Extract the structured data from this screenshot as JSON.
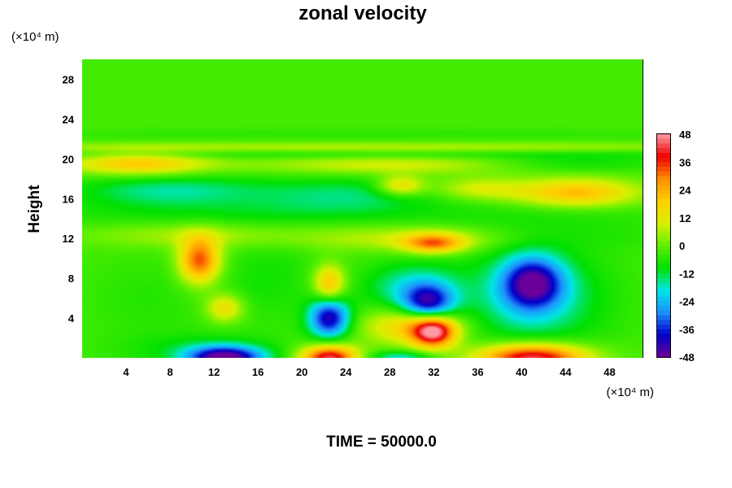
{
  "chart_data": {
    "type": "heatmap",
    "title": "zonal velocity",
    "ylabel": "Height",
    "y_unit": "(×10⁴ m)",
    "x_unit": "(×10⁴ m)",
    "footer": "TIME = 50000.0",
    "xlim": [
      0,
      51
    ],
    "ylim": [
      0,
      30
    ],
    "x_ticks": [
      4,
      8,
      12,
      16,
      20,
      24,
      28,
      32,
      36,
      40,
      44,
      48
    ],
    "y_ticks": [
      4,
      8,
      12,
      16,
      20,
      24,
      28
    ],
    "colorbar": {
      "ticks": [
        48,
        36,
        24,
        12,
        0,
        -12,
        -24,
        -36,
        -48
      ],
      "range": [
        -48,
        48
      ],
      "colors": [
        "#6a0099",
        "#0000c8",
        "#1e90ff",
        "#00e5e5",
        "#00e000",
        "#60f000",
        "#d8f000",
        "#ffd000",
        "#ff8c00",
        "#ee0000",
        "#ff9aa5"
      ]
    },
    "background_value": -3,
    "features": [
      {
        "x": 13,
        "y": 0,
        "value": -48,
        "sx": 2.4,
        "sy": 0.8
      },
      {
        "x": 11,
        "y": 0.8,
        "value": -10,
        "sx": 5,
        "sy": 1.2
      },
      {
        "x": 22.5,
        "y": 0,
        "value": 44,
        "sx": 1.8,
        "sy": 0.9
      },
      {
        "x": 41,
        "y": 0,
        "value": 46,
        "sx": 3.5,
        "sy": 1.0
      },
      {
        "x": 29,
        "y": 0,
        "value": -20,
        "sx": 2,
        "sy": 0.5
      },
      {
        "x": 22.5,
        "y": 4,
        "value": -42,
        "sx": 1.3,
        "sy": 1.4
      },
      {
        "x": 32,
        "y": 2.6,
        "value": 40,
        "sx": 1.4,
        "sy": 1.1
      },
      {
        "x": 30,
        "y": 3.2,
        "value": 20,
        "sx": 3,
        "sy": 1.3
      },
      {
        "x": 31.5,
        "y": 5.5,
        "value": -36,
        "sx": 1.6,
        "sy": 1.3
      },
      {
        "x": 30,
        "y": 7,
        "value": -18,
        "sx": 3,
        "sy": 1.8
      },
      {
        "x": 41,
        "y": 7.5,
        "value": -40,
        "sx": 1.9,
        "sy": 1.8
      },
      {
        "x": 41,
        "y": 6,
        "value": -18,
        "sx": 4.5,
        "sy": 3.5
      },
      {
        "x": 10.7,
        "y": 9.8,
        "value": 34,
        "sx": 1.3,
        "sy": 1.6
      },
      {
        "x": 13,
        "y": 5,
        "value": 16,
        "sx": 1.2,
        "sy": 1.0
      },
      {
        "x": 22.5,
        "y": 7.5,
        "value": 22,
        "sx": 1.0,
        "sy": 1.3
      },
      {
        "x": 17,
        "y": 8,
        "value": -8,
        "sx": 3,
        "sy": 3
      },
      {
        "x": 6,
        "y": 6,
        "value": -6,
        "sx": 4,
        "sy": 3
      },
      {
        "x": 32,
        "y": 11.5,
        "value": 26,
        "sx": 2,
        "sy": 0.7
      },
      {
        "x": 30,
        "y": 12,
        "value": 8,
        "sx": 7,
        "sy": 0.9
      },
      {
        "x": 10,
        "y": 12.3,
        "value": 6,
        "sx": 7,
        "sy": 0.9
      },
      {
        "x": 45,
        "y": 12.2,
        "value": -6,
        "sx": 7,
        "sy": 1.0
      },
      {
        "x": 12,
        "y": 14.5,
        "value": -8,
        "sx": 12,
        "sy": 1.0
      },
      {
        "x": 42,
        "y": 14.3,
        "value": -6,
        "sx": 10,
        "sy": 1.0
      },
      {
        "x": 8,
        "y": 16.8,
        "value": -16,
        "sx": 6,
        "sy": 1.1
      },
      {
        "x": 24,
        "y": 16.3,
        "value": -14,
        "sx": 6,
        "sy": 1.3
      },
      {
        "x": 45,
        "y": 16.6,
        "value": 22,
        "sx": 4,
        "sy": 1.0
      },
      {
        "x": 29,
        "y": 17.3,
        "value": 18,
        "sx": 1.5,
        "sy": 0.7
      },
      {
        "x": 36,
        "y": 17.0,
        "value": 10,
        "sx": 3,
        "sy": 0.8
      },
      {
        "x": 5,
        "y": 19.5,
        "value": 20,
        "sx": 4.5,
        "sy": 0.8
      },
      {
        "x": 28,
        "y": 19.4,
        "value": 10,
        "sx": 9,
        "sy": 0.7
      },
      {
        "x": 44,
        "y": 19.5,
        "value": -10,
        "sx": 6,
        "sy": 0.6
      },
      {
        "x": 25,
        "y": 20.4,
        "value": -8,
        "sx": 30,
        "sy": 0.35
      },
      {
        "x": 25,
        "y": 21.2,
        "value": 6,
        "sx": 30,
        "sy": 0.35
      },
      {
        "x": 25,
        "y": 22.5,
        "value": -5,
        "sx": 30,
        "sy": 0.4
      }
    ]
  }
}
